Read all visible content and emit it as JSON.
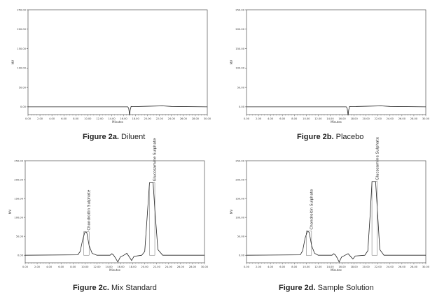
{
  "chart_data": [
    {
      "type": "line",
      "caption_label": "Figure 2a.",
      "caption_name": "Diluent",
      "xlabel": "Minutes",
      "ylabel": "MV",
      "xlim": [
        0,
        30
      ],
      "ylim": [
        -20,
        250
      ],
      "x_ticks": [
        "0.00",
        "2.00",
        "4.00",
        "6.00",
        "8.00",
        "10.00",
        "12.00",
        "14.00",
        "16.00",
        "18.00",
        "20.00",
        "22.00",
        "24.00",
        "26.00",
        "28.00",
        "30.00"
      ],
      "y_ticks": [
        "0.00",
        "50.00",
        "100.00",
        "150.00",
        "200.00",
        "250.00"
      ],
      "series": [
        {
          "x": [
            0,
            16.7,
            16.85,
            17.0,
            17.1,
            17.25,
            17.5,
            20,
            22.5,
            24,
            30
          ],
          "y": [
            0,
            0,
            -4,
            -22,
            -8,
            1,
            0.5,
            1.5,
            2.5,
            1,
            0
          ]
        }
      ],
      "peaks": []
    },
    {
      "type": "line",
      "caption_label": "Figure 2b.",
      "caption_name": "Placebo",
      "xlabel": "Minutes",
      "ylabel": "MV",
      "xlim": [
        0,
        30
      ],
      "ylim": [
        -20,
        250
      ],
      "x_ticks": [
        "0.00",
        "2.00",
        "4.00",
        "6.00",
        "8.00",
        "10.00",
        "12.00",
        "14.00",
        "16.00",
        "18.00",
        "20.00",
        "22.00",
        "24.00",
        "26.00",
        "28.00",
        "30.00"
      ],
      "y_ticks": [
        "0.00",
        "50.00",
        "100.00",
        "150.00",
        "200.00",
        "250.00"
      ],
      "series": [
        {
          "x": [
            0,
            16.7,
            16.85,
            17.0,
            17.1,
            17.25,
            17.5,
            20,
            22.5,
            24,
            30
          ],
          "y": [
            0,
            0,
            -4,
            -22,
            -8,
            1,
            0.5,
            1.5,
            2.5,
            1,
            0
          ]
        }
      ],
      "peaks": []
    },
    {
      "type": "line",
      "caption_label": "Figure 2c.",
      "caption_name": "Mix Standard",
      "xlabel": "Minutes",
      "ylabel": "MV",
      "xlim": [
        0,
        30
      ],
      "ylim": [
        -20,
        250
      ],
      "x_ticks": [
        "0.00",
        "2.00",
        "4.00",
        "6.00",
        "8.00",
        "10.00",
        "12.00",
        "14.00",
        "16.00",
        "18.00",
        "20.00",
        "22.00",
        "24.00",
        "26.00",
        "28.00",
        "30.00"
      ],
      "y_ticks": [
        "0.00",
        "50.00",
        "100.00",
        "150.00",
        "200.00",
        "250.00"
      ],
      "series": [
        {
          "x": [
            0,
            8.8,
            9.2,
            9.6,
            10.0,
            10.3,
            10.7,
            11.2,
            12,
            14.2,
            14.5,
            14.8,
            15.2,
            15.5,
            15.9,
            16.5,
            17.0,
            17.4,
            17.8,
            18.2,
            19.5,
            20.0,
            20.4,
            20.8,
            21.1,
            21.4,
            21.7,
            22.2,
            23,
            30
          ],
          "y": [
            0,
            1,
            10,
            40,
            62,
            60,
            25,
            5,
            0,
            0,
            4,
            0,
            -10,
            -18,
            -5,
            0,
            5,
            -4,
            -14,
            -3,
            0,
            10,
            100,
            192,
            192,
            192,
            120,
            15,
            0,
            0
          ]
        }
      ],
      "peaks": [
        {
          "name": "Chondroitin Sulphate",
          "x": 10.1,
          "y": 62
        },
        {
          "name": "Glucosamine Sulphate",
          "x": 21.1,
          "y": 192
        }
      ]
    },
    {
      "type": "line",
      "caption_label": "Figure 2d.",
      "caption_name": "Sample  Solution",
      "xlabel": "Minutes",
      "ylabel": "MV",
      "xlim": [
        0,
        30
      ],
      "ylim": [
        -20,
        250
      ],
      "x_ticks": [
        "0.00",
        "2.00",
        "4.00",
        "6.00",
        "8.00",
        "10.00",
        "12.00",
        "14.00",
        "16.00",
        "18.00",
        "20.00",
        "22.00",
        "24.00",
        "26.00",
        "28.00",
        "30.00"
      ],
      "y_ticks": [
        "0.00",
        "50.00",
        "100.00",
        "150.00",
        "200.00",
        "250.00"
      ],
      "series": [
        {
          "x": [
            0,
            9.0,
            9.4,
            9.8,
            10.2,
            10.5,
            10.9,
            11.4,
            12,
            14.3,
            14.6,
            14.9,
            15.2,
            15.5,
            15.9,
            16.5,
            17.0,
            17.4,
            17.8,
            18.2,
            19.8,
            20.3,
            20.7,
            21.0,
            21.3,
            21.6,
            21.9,
            22.3,
            23,
            30
          ],
          "y": [
            0,
            1,
            12,
            45,
            64,
            60,
            25,
            5,
            0,
            0,
            4,
            0,
            -8,
            -18,
            -5,
            0,
            4,
            -3,
            -10,
            -2,
            0,
            12,
            110,
            195,
            195,
            195,
            120,
            15,
            0,
            0
          ]
        }
      ],
      "peaks": [
        {
          "name": "Chondroitin Sulphate",
          "x": 10.3,
          "y": 64
        },
        {
          "name": "Glucosamine Sulphate",
          "x": 21.3,
          "y": 195
        }
      ]
    }
  ]
}
